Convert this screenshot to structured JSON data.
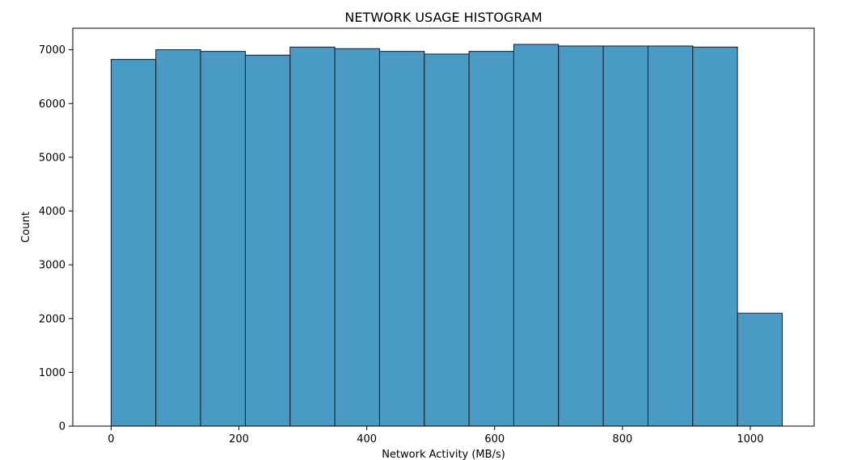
{
  "chart_data": {
    "type": "bar",
    "title": "NETWORK USAGE HISTOGRAM",
    "xlabel": "Network Activity (MB/s)",
    "ylabel": "Count",
    "bin_edges": [
      0,
      70,
      140,
      210,
      280,
      350,
      420,
      490,
      560,
      630,
      700,
      770,
      840,
      910,
      980,
      1050
    ],
    "values": [
      6820,
      7000,
      6970,
      6900,
      7050,
      7020,
      6970,
      6920,
      6970,
      7100,
      7070,
      7070,
      7070,
      7050,
      2100
    ],
    "xlim": [
      -60,
      1100
    ],
    "ylim": [
      0,
      7400
    ],
    "xticks": [
      0,
      200,
      400,
      600,
      800,
      1000
    ],
    "yticks": [
      0,
      1000,
      2000,
      3000,
      4000,
      5000,
      6000,
      7000
    ],
    "bar_color": "#4a9ac6",
    "edge_color": "#1a1a1a",
    "grid": false
  }
}
